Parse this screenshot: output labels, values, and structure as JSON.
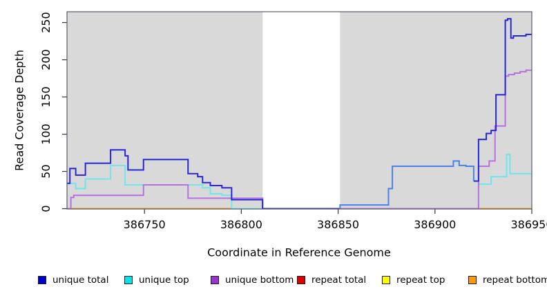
{
  "chart_data": {
    "type": "line",
    "subtype": "step-after",
    "title": "",
    "xlabel": "Coordinate in Reference Genome",
    "ylabel": "Read Coverage Depth",
    "xlim": [
      386710,
      386950
    ],
    "ylim": [
      0,
      264
    ],
    "x_ticks": [
      386750,
      386800,
      386850,
      386900,
      386950
    ],
    "x_tick_labels": [
      "386750",
      "386800",
      "386850",
      "386900",
      "386950"
    ],
    "y_ticks": [
      0,
      50,
      100,
      150,
      200,
      250
    ],
    "y_tick_labels": [
      "0",
      "50",
      "100",
      "150",
      "200",
      "250"
    ],
    "grid": false,
    "plot_bg_color": "#d9d9d9",
    "no_data_band": {
      "x_start": 386811,
      "x_end": 386851,
      "color": "#ffffff"
    },
    "box_color": "#5a5a66",
    "legend_position": "bottom",
    "legend": [
      {
        "label": "unique total",
        "color": "#0000d2"
      },
      {
        "label": "unique top",
        "color": "#00e5ee"
      },
      {
        "label": "unique bottom",
        "color": "#9933cc"
      },
      {
        "label": "repeat total",
        "color": "#dd0000"
      },
      {
        "label": "repeat top",
        "color": "#ffff00"
      },
      {
        "label": "repeat bottom",
        "color": "#ff9900"
      }
    ],
    "series": [
      {
        "name": "repeat total",
        "segments": [
          {
            "color": "#cc2222",
            "steps": [
              [
                386710,
                0
              ]
            ],
            "end": 386950
          }
        ]
      },
      {
        "name": "repeat top",
        "segments": [
          {
            "color": "#e8e800",
            "steps": [
              [
                386710,
                0
              ]
            ],
            "end": 386950
          }
        ]
      },
      {
        "name": "repeat bottom",
        "segments": [
          {
            "color": "#ff9100",
            "steps": [
              [
                386710,
                0
              ]
            ],
            "end": 386950
          }
        ]
      },
      {
        "name": "unique top",
        "segments": [
          {
            "color": "#6ee6ec",
            "steps": [
              [
                386710,
                34
              ],
              [
                386714.5,
                27
              ],
              [
                386719.5,
                40
              ],
              [
                386732.5,
                58
              ],
              [
                386740,
                32
              ],
              [
                386780,
                28
              ],
              [
                386784,
                20
              ],
              [
                386790,
                18
              ],
              [
                386795,
                0
              ],
              [
                386922.5,
                33
              ],
              [
                386929,
                43
              ],
              [
                386937,
                73
              ],
              [
                386938.7,
                47
              ]
            ],
            "end": 386950
          }
        ]
      },
      {
        "name": "unique bottom",
        "segments": [
          {
            "color": "#b571e0",
            "steps": [
              [
                386710,
                0
              ],
              [
                386712,
                15
              ],
              [
                386713.5,
                18
              ],
              [
                386749.5,
                32
              ],
              [
                386772.5,
                14
              ],
              [
                386811,
                0
              ],
              [
                386922.5,
                57
              ],
              [
                386928,
                64
              ],
              [
                386931,
                111
              ],
              [
                386936.3,
                178
              ],
              [
                386938,
                180
              ],
              [
                386941,
                182
              ],
              [
                386944,
                184
              ],
              [
                386947,
                186
              ]
            ],
            "end": 386950
          }
        ]
      },
      {
        "name": "unique total",
        "segments": [
          {
            "color": "#2626d2",
            "steps": [
              [
                386710,
                34
              ],
              [
                386711.5,
                54
              ],
              [
                386714.5,
                45
              ],
              [
                386719.5,
                61
              ],
              [
                386732.5,
                79
              ],
              [
                386740,
                71
              ],
              [
                386741.5,
                52
              ],
              [
                386749.5,
                66
              ],
              [
                386772.5,
                47
              ],
              [
                386777.5,
                43
              ],
              [
                386780,
                35
              ],
              [
                386784,
                31
              ],
              [
                386790,
                28
              ],
              [
                386795,
                12
              ],
              [
                386811,
                0
              ]
            ],
            "end": 386851
          },
          {
            "color": "#4a80e8",
            "steps": [
              [
                386851,
                0
              ],
              [
                386851,
                5
              ],
              [
                386876,
                27
              ],
              [
                386878,
                57
              ],
              [
                386909.5,
                64
              ],
              [
                386912.5,
                58
              ],
              [
                386916,
                57
              ],
              [
                386920,
                37
              ]
            ],
            "end": 386920
          },
          {
            "color": "#2626d2",
            "steps": [
              [
                386920,
                37
              ],
              [
                386922.5,
                93
              ],
              [
                386926.5,
                101
              ],
              [
                386929,
                105
              ],
              [
                386931.5,
                153
              ],
              [
                386936.3,
                253
              ],
              [
                386937.5,
                255
              ],
              [
                386939.2,
                229
              ],
              [
                386940.5,
                232
              ],
              [
                386947,
                234
              ]
            ],
            "end": 386950
          }
        ]
      }
    ]
  }
}
